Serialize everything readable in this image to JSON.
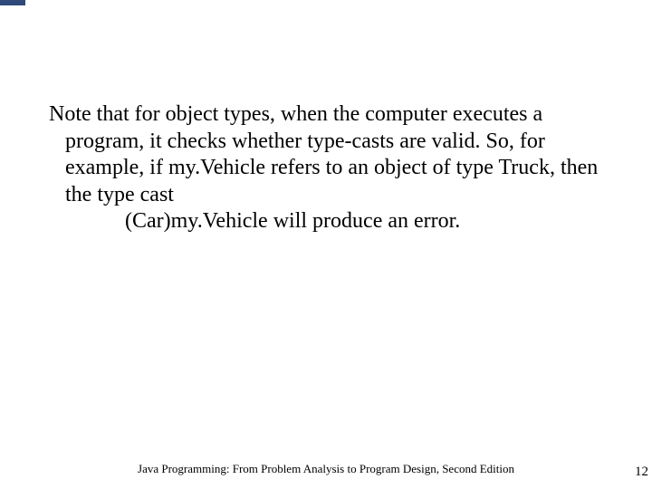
{
  "accent": {
    "color": "#2f4a7a"
  },
  "body": {
    "paragraph": "Note that for object types, when the computer executes a program, it checks whether type-casts are valid. So, for example, if my.​Vehicle refers to an object of type Truck, then the type cast",
    "indent_line": "(Car)my.​Vehicle will produce an error.",
    "text_color": "#000000",
    "font_size_pt": 24
  },
  "footer": {
    "text": "Java Programming: From Problem Analysis to Program Design, Second Edition",
    "page_number": "12",
    "font_size_pt": 13,
    "text_color": "#000000"
  },
  "background_color": "#ffffff"
}
